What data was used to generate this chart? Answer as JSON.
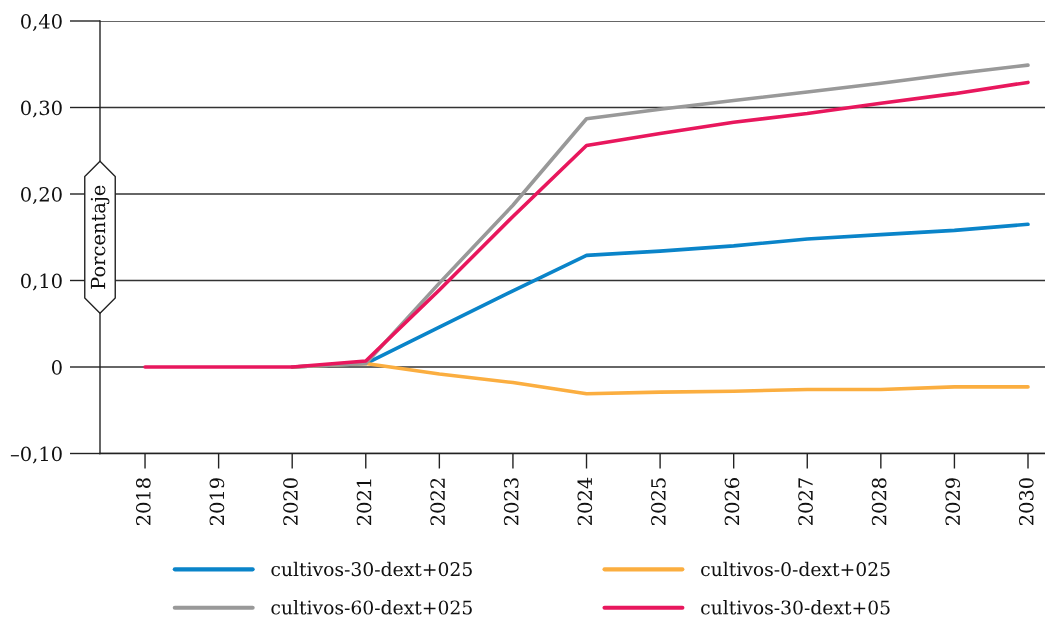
{
  "chart_data": {
    "type": "line",
    "ylabel": "Porcentaje",
    "categories": [
      "2018",
      "2019",
      "2020",
      "2021",
      "2022",
      "2023",
      "2024",
      "2025",
      "2026",
      "2027",
      "2028",
      "2029",
      "2030"
    ],
    "series": [
      {
        "name": "cultivos-30-dext+025",
        "color": "#0a84c9",
        "values": [
          null,
          null,
          0,
          0.004,
          0.046,
          0.088,
          0.129,
          0.134,
          0.14,
          0.148,
          0.153,
          0.158,
          0.165
        ]
      },
      {
        "name": "cultivos-0-dext+025",
        "color": "#fbae40",
        "values": [
          null,
          null,
          0,
          0.004,
          -0.008,
          -0.018,
          -0.031,
          -0.029,
          -0.028,
          -0.026,
          -0.026,
          -0.023,
          -0.023
        ]
      },
      {
        "name": "cultivos-60-dext+025",
        "color": "#999999",
        "values": [
          null,
          null,
          0,
          0.004,
          0.097,
          0.187,
          0.287,
          0.298,
          0.308,
          0.318,
          0.328,
          0.339,
          0.349
        ]
      },
      {
        "name": "cultivos-30-dext+05",
        "color": "#e8175d",
        "values": [
          0,
          0,
          0,
          0.007,
          0.089,
          0.174,
          0.256,
          0.27,
          0.283,
          0.293,
          0.305,
          0.316,
          0.329
        ]
      }
    ],
    "ylim": [
      -0.1,
      0.4
    ],
    "yticks": [
      {
        "value": -0.1,
        "label": "–0,10"
      },
      0,
      {
        "value": 0.1,
        "label": "0,10"
      },
      {
        "value": 0.2,
        "label": "0,20"
      },
      {
        "value": 0.3,
        "label": "0,30"
      },
      {
        "value": 0.4,
        "label": "0,40"
      }
    ],
    "grid": "y",
    "legend": "bottom",
    "line_style": "solid"
  }
}
